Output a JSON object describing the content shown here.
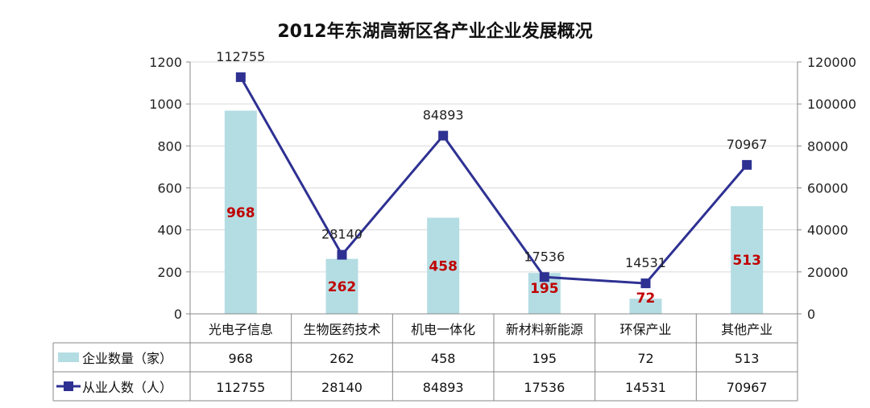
{
  "chart_data": {
    "type": "bar+line",
    "title": "2012年东湖高新区各产业企业发展概况",
    "categories": [
      "光电子信息",
      "生物医药技术",
      "机电一体化",
      "新材料新能源",
      "环保产业",
      "其他产业"
    ],
    "series": [
      {
        "name": "企业数量（家）",
        "type": "bar",
        "axis": "left",
        "color": "#b4dde3",
        "label_color": "#c00000",
        "values": [
          968,
          262,
          458,
          195,
          72,
          513
        ]
      },
      {
        "name": "从业人数（人）",
        "type": "line",
        "axis": "right",
        "color": "#2e3192",
        "values": [
          112755,
          28140,
          84893,
          17536,
          14531,
          70967
        ]
      }
    ],
    "y_left": {
      "min": 0,
      "max": 1200,
      "step": 200,
      "ticks": [
        "0",
        "200",
        "400",
        "600",
        "800",
        "1000",
        "1200"
      ]
    },
    "y_right": {
      "min": 0,
      "max": 120000,
      "step": 20000,
      "ticks": [
        "0",
        "20000",
        "40000",
        "60000",
        "80000",
        "100000",
        "120000"
      ]
    },
    "grid": true,
    "legend": "data-table"
  }
}
